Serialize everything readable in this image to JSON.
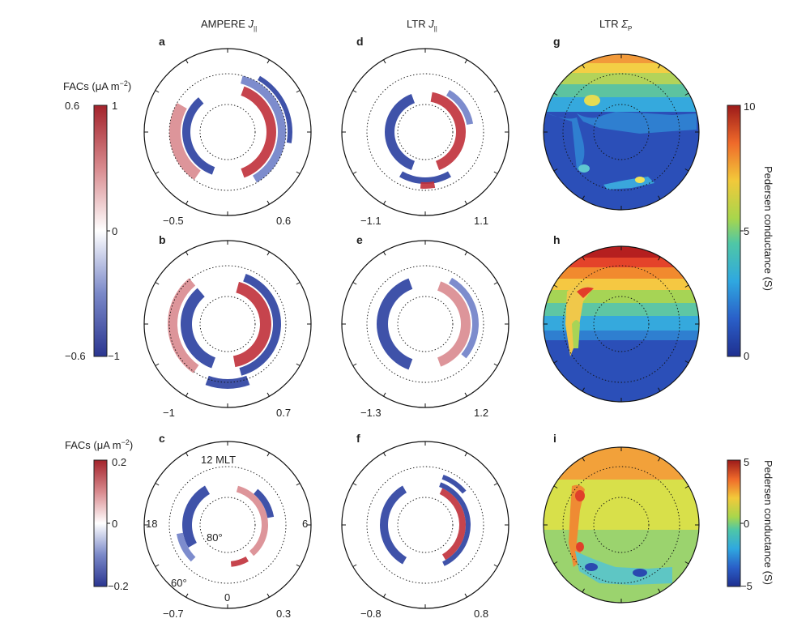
{
  "columns": [
    {
      "title_main": "AMPERE ",
      "title_italic": "J",
      "title_sub": "||"
    },
    {
      "title_main": "LTR  ",
      "title_italic": "J",
      "title_sub": "||"
    },
    {
      "title_main": "LTR ",
      "title_italic": "Σ",
      "title_sub": "P"
    }
  ],
  "panels": [
    {
      "letter": "a",
      "min": "−0.5",
      "max": "0.6"
    },
    {
      "letter": "b",
      "min": "−1",
      "max": "0.7"
    },
    {
      "letter": "c",
      "min": "−0.7",
      "max": "0.3"
    },
    {
      "letter": "d",
      "min": "−1.1",
      "max": "1.1"
    },
    {
      "letter": "e",
      "min": "−1.3",
      "max": "1.2"
    },
    {
      "letter": "f",
      "min": "−0.8",
      "max": "0.8"
    },
    {
      "letter": "g"
    },
    {
      "letter": "h"
    },
    {
      "letter": "i"
    }
  ],
  "polar_labels": {
    "noon": "12 MLT",
    "dusk": "18",
    "dawn": "6",
    "midnight": "0",
    "lat_inner": "80°",
    "lat_outer": "60°"
  },
  "colorbar_facs_top": {
    "title": "FACs (μA m",
    "title_exp": "−2",
    "title_close": ")",
    "left_top": "0.6",
    "left_bottom": "−0.6",
    "right_top": "1",
    "right_mid": "0",
    "right_bottom": "−1"
  },
  "colorbar_facs_bottom": {
    "title": "FACs (μA m",
    "title_exp": "−2",
    "title_close": ")",
    "top": "0.2",
    "mid": "0",
    "bottom": "−0.2"
  },
  "colorbar_pedersen_top": {
    "top": "10",
    "mid": "5",
    "bottom": "0",
    "label": "Pedersen conductance (S)"
  },
  "colorbar_pedersen_bottom": {
    "top": "5",
    "mid": "0",
    "bottom": "−5",
    "label": "Pedersen conductance (S)"
  },
  "colors": {
    "red": "#c0303a",
    "pink": "#d98a8f",
    "blue": "#2a3fa0",
    "lightblue": "#6f7fc8"
  }
}
